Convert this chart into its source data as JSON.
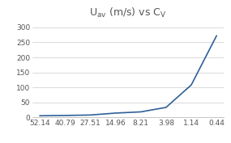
{
  "title": "U$_{av}$ (m/s) vs C$_V$",
  "x_labels": [
    "52.14",
    "40.79",
    "27.51",
    "14.96",
    "8.21",
    "3.98",
    "1.14",
    "0.44"
  ],
  "x_values": [
    52.14,
    40.79,
    27.51,
    14.96,
    8.21,
    3.98,
    1.14,
    0.44
  ],
  "y_values": [
    5.0,
    6.0,
    7.5,
    14.0,
    18.0,
    33.0,
    108.0,
    272.0
  ],
  "ylim": [
    0,
    320
  ],
  "yticks": [
    0,
    50,
    100,
    150,
    200,
    250,
    300
  ],
  "line_color": "#2e6097",
  "line_width": 1.2,
  "background_color": "#ffffff",
  "grid_color": "#cccccc",
  "title_fontsize": 9,
  "tick_fontsize": 6.5,
  "title_color": "#555555"
}
